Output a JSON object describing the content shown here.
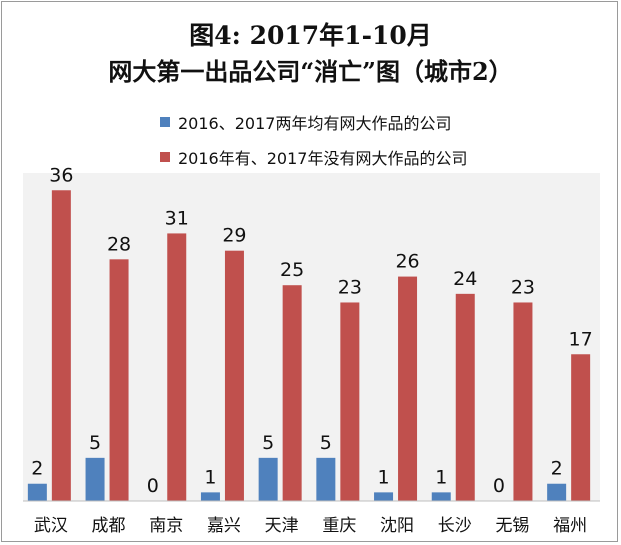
{
  "chart_data": {
    "type": "bar",
    "title": "图4: 2017年1-10月",
    "subtitle": "网大第一出品公司“消亡”图（城市2）",
    "categories": [
      "武汉",
      "成都",
      "南京",
      "嘉兴",
      "天津",
      "重庆",
      "沈阳",
      "长沙",
      "无锡",
      "福州"
    ],
    "series": [
      {
        "name": "2016、2017两年均有网大作品的公司",
        "color": "#4f81bd",
        "values": [
          2,
          5,
          0,
          1,
          5,
          5,
          1,
          1,
          0,
          2
        ]
      },
      {
        "name": "2016年有、2017年没有网大作品的公司",
        "color": "#c0504d",
        "values": [
          36,
          28,
          31,
          29,
          25,
          23,
          26,
          24,
          23,
          17
        ]
      }
    ],
    "ylim": [
      0,
      38
    ],
    "grid": false,
    "legend_position": "top",
    "plot_background": "#f2f2f2"
  }
}
